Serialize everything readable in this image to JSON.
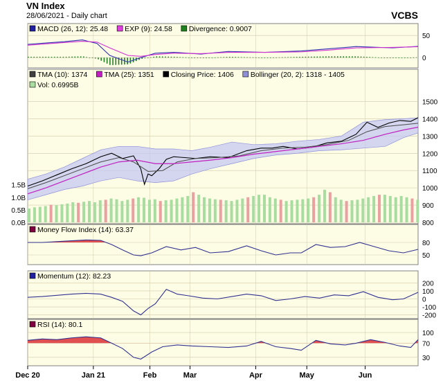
{
  "header": {
    "title": "VN Index",
    "subtitle": "28/06/2021 - Daily chart",
    "brand": "VCBS"
  },
  "colors": {
    "panel_bg": "#fdfde6",
    "grid": "#d0c8a8",
    "price": "#000000",
    "tma10": "#4a4a4a",
    "tma25": "#c020c0",
    "bollinger_fill": "#c4c8f0",
    "bollinger_line": "#9090d8",
    "vol_up": "#a8dca0",
    "vol_down": "#e8a0a0",
    "macd": "#3030b0",
    "exp": "#d030d0",
    "divergence": "#208020",
    "indicator_line": "#303090",
    "overbought_fill": "#e05050"
  },
  "chart_data": [
    {
      "type": "line",
      "panel": "macd",
      "legend": [
        {
          "label": "MACD (26, 12): 25.48",
          "color": "#2020a0"
        },
        {
          "label": "EXP (9): 24.58",
          "color": "#e040e0"
        },
        {
          "label": "Divergence: 0.9007",
          "color": "#208020"
        }
      ],
      "ylim": [
        -20,
        55
      ],
      "yticks": [
        "50",
        "0"
      ],
      "series": [
        {
          "name": "MACD",
          "x": [
            0,
            10,
            20,
            30,
            38,
            45,
            55,
            62,
            70,
            80,
            95,
            110,
            130,
            150,
            165,
            180,
            200,
            214
          ],
          "values": [
            30,
            33,
            36,
            40,
            32,
            5,
            -10,
            0,
            10,
            12,
            8,
            14,
            12,
            15,
            20,
            25,
            22,
            25.48
          ]
        },
        {
          "name": "EXP",
          "x": [
            0,
            10,
            20,
            30,
            38,
            45,
            55,
            62,
            70,
            80,
            95,
            110,
            130,
            150,
            165,
            180,
            200,
            214
          ],
          "values": [
            28,
            31,
            34,
            37,
            35,
            22,
            5,
            3,
            7,
            10,
            9,
            12,
            12,
            13,
            17,
            22,
            23,
            24.58
          ]
        }
      ],
      "divergence": {
        "x": [
          0,
          10,
          20,
          30,
          38,
          45,
          55,
          62,
          70,
          80,
          95,
          110,
          130,
          150,
          165,
          180,
          200,
          214
        ],
        "values": [
          2,
          2,
          2,
          3,
          -3,
          -17,
          -15,
          -3,
          3,
          2,
          -1,
          2,
          0,
          2,
          3,
          3,
          -1,
          0.9
        ]
      }
    },
    {
      "type": "line",
      "panel": "price",
      "legend": [
        {
          "label": "TMA (10): 1374",
          "color": "#404040"
        },
        {
          "label": "TMA (25): 1351",
          "color": "#c020c0"
        },
        {
          "label": "Closing Price: 1406",
          "color": "#000000"
        },
        {
          "label": "Bollinger (20, 2): 1318 - 1405",
          "color": "#9090d8"
        },
        {
          "label": "Vol: 0.6995B",
          "color": "#a8dca0"
        }
      ],
      "ylim": [
        800,
        1550
      ],
      "yticks": [
        "1500",
        "1400",
        "1300",
        "1200",
        "1100",
        "1000",
        "900",
        "800"
      ],
      "vol_ticks": [
        "1.5B",
        "1.0B",
        "0.5B",
        "0.0B"
      ],
      "vol_ylim": [
        0,
        1.6
      ],
      "series": [
        {
          "name": "Closing Price",
          "x": [
            0,
            8,
            16,
            24,
            32,
            40,
            46,
            52,
            58,
            62,
            64,
            66,
            68,
            72,
            76,
            80,
            86,
            92,
            100,
            110,
            120,
            128,
            134,
            140,
            148,
            156,
            164,
            172,
            180,
            186,
            192,
            198,
            204,
            210,
            214
          ],
          "values": [
            1010,
            1040,
            1075,
            1110,
            1140,
            1180,
            1200,
            1170,
            1185,
            1110,
            1020,
            1080,
            1070,
            1110,
            1165,
            1180,
            1175,
            1170,
            1180,
            1175,
            1215,
            1230,
            1230,
            1240,
            1225,
            1235,
            1260,
            1270,
            1310,
            1380,
            1350,
            1375,
            1390,
            1385,
            1406
          ]
        },
        {
          "name": "TMA (10)",
          "x": [
            0,
            10,
            20,
            30,
            40,
            50,
            58,
            66,
            74,
            82,
            92,
            104,
            116,
            128,
            140,
            152,
            164,
            176,
            186,
            196,
            206,
            214
          ],
          "values": [
            995,
            1030,
            1070,
            1110,
            1150,
            1175,
            1150,
            1095,
            1100,
            1150,
            1170,
            1175,
            1185,
            1215,
            1230,
            1235,
            1250,
            1275,
            1325,
            1355,
            1365,
            1374
          ]
        },
        {
          "name": "TMA (25)",
          "x": [
            0,
            10,
            20,
            30,
            40,
            50,
            60,
            70,
            80,
            90,
            100,
            112,
            124,
            136,
            148,
            160,
            172,
            184,
            196,
            206,
            214
          ],
          "values": [
            965,
            1000,
            1040,
            1080,
            1120,
            1150,
            1160,
            1140,
            1140,
            1150,
            1160,
            1175,
            1195,
            1210,
            1225,
            1240,
            1255,
            1275,
            1310,
            1335,
            1351
          ]
        },
        {
          "name": "Bollinger Upper",
          "x": [
            0,
            10,
            20,
            30,
            40,
            50,
            60,
            70,
            80,
            90,
            100,
            112,
            124,
            136,
            148,
            160,
            172,
            184,
            196,
            206,
            214
          ],
          "values": [
            1050,
            1080,
            1120,
            1170,
            1220,
            1240,
            1240,
            1225,
            1225,
            1215,
            1235,
            1265,
            1250,
            1255,
            1270,
            1280,
            1300,
            1380,
            1395,
            1400,
            1405
          ]
        },
        {
          "name": "Bollinger Lower",
          "x": [
            0,
            10,
            20,
            30,
            40,
            50,
            60,
            70,
            80,
            90,
            100,
            112,
            124,
            136,
            148,
            160,
            172,
            184,
            196,
            206,
            214
          ],
          "values": [
            930,
            960,
            990,
            1010,
            1040,
            1060,
            1040,
            1030,
            1040,
            1080,
            1110,
            1140,
            1170,
            1190,
            1200,
            1215,
            1220,
            1230,
            1240,
            1290,
            1318
          ]
        }
      ],
      "volume": {
        "x_step": 3,
        "values": [
          0.55,
          0.6,
          0.62,
          0.65,
          0.7,
          0.68,
          0.72,
          0.75,
          0.8,
          0.78,
          0.82,
          0.85,
          0.8,
          0.88,
          0.9,
          0.95,
          0.92,
          0.85,
          0.9,
          0.95,
          1.0,
          0.98,
          0.9,
          0.92,
          0.85,
          0.88,
          0.9,
          0.95,
          1.0,
          1.05,
          1.2,
          1.1,
          1.0,
          0.95,
          0.92,
          0.9,
          0.88,
          0.85,
          0.9,
          0.95,
          1.0,
          1.05,
          1.1,
          1.1,
          1.0,
          0.95,
          0.9,
          0.85,
          0.88,
          0.9,
          0.92,
          0.95,
          1.0,
          1.1,
          1.3,
          1.2,
          1.0,
          0.9,
          0.85,
          0.88,
          0.9,
          0.95,
          1.0,
          1.05,
          1.1,
          1.1,
          1.05,
          1.0,
          1.05,
          1.0,
          0.95,
          0.9
        ],
        "down": [
          4,
          9,
          14,
          19,
          24,
          30,
          35,
          40,
          46,
          52,
          55,
          58,
          64,
          70
        ]
      }
    },
    {
      "type": "line",
      "panel": "mfi",
      "legend": [
        {
          "label": "Money Flow Index (14): 63.37",
          "color": "#800040"
        }
      ],
      "ylim": [
        30,
        100
      ],
      "yticks": [
        "80",
        "50"
      ],
      "series": [
        {
          "name": "Money Flow Index",
          "x": [
            0,
            8,
            16,
            24,
            32,
            40,
            46,
            52,
            58,
            62,
            68,
            76,
            84,
            92,
            100,
            110,
            120,
            128,
            136,
            144,
            150,
            158,
            166,
            174,
            182,
            190,
            198,
            206,
            214
          ],
          "values": [
            80,
            80,
            82,
            84,
            86,
            85,
            75,
            62,
            50,
            48,
            55,
            70,
            62,
            68,
            55,
            58,
            72,
            60,
            50,
            55,
            55,
            75,
            68,
            70,
            80,
            70,
            60,
            55,
            63.37
          ]
        }
      ]
    },
    {
      "type": "line",
      "panel": "momentum",
      "legend": [
        {
          "label": "Momentum (12): 82.23",
          "color": "#2020a0"
        }
      ],
      "ylim": [
        -230,
        230
      ],
      "yticks": [
        "200",
        "100",
        "0",
        "-100",
        "-200"
      ],
      "series": [
        {
          "name": "Momentum",
          "x": [
            0,
            8,
            16,
            24,
            32,
            40,
            46,
            52,
            58,
            62,
            66,
            70,
            76,
            82,
            88,
            96,
            104,
            112,
            120,
            128,
            136,
            144,
            152,
            160,
            168,
            176,
            184,
            192,
            200,
            206,
            214
          ],
          "values": [
            20,
            30,
            45,
            60,
            70,
            60,
            20,
            -30,
            -150,
            -200,
            -120,
            -60,
            120,
            60,
            40,
            10,
            0,
            30,
            60,
            40,
            -20,
            0,
            30,
            10,
            50,
            40,
            90,
            20,
            -10,
            0,
            82.23
          ]
        }
      ]
    },
    {
      "type": "line",
      "panel": "rsi",
      "legend": [
        {
          "label": "RSI (14): 80.1",
          "color": "#800040"
        }
      ],
      "ylim": [
        10,
        110
      ],
      "yticks": [
        "100",
        "70",
        "30"
      ],
      "series": [
        {
          "name": "RSI",
          "x": [
            0,
            8,
            16,
            24,
            32,
            40,
            46,
            52,
            58,
            62,
            68,
            74,
            82,
            90,
            100,
            110,
            120,
            128,
            136,
            144,
            150,
            158,
            166,
            174,
            180,
            188,
            196,
            204,
            210,
            214
          ],
          "values": [
            78,
            82,
            80,
            85,
            88,
            85,
            70,
            55,
            30,
            25,
            45,
            60,
            65,
            62,
            60,
            58,
            62,
            75,
            60,
            55,
            50,
            78,
            68,
            65,
            70,
            80,
            72,
            62,
            58,
            80.1
          ]
        }
      ]
    }
  ],
  "x_axis": {
    "range": [
      0,
      214
    ],
    "labels": [
      "Dec 20",
      "Jan 21",
      "Feb",
      "Mar",
      "Apr",
      "May",
      "Jun"
    ],
    "label_x": [
      0,
      36,
      67,
      89,
      125,
      153,
      185
    ]
  }
}
